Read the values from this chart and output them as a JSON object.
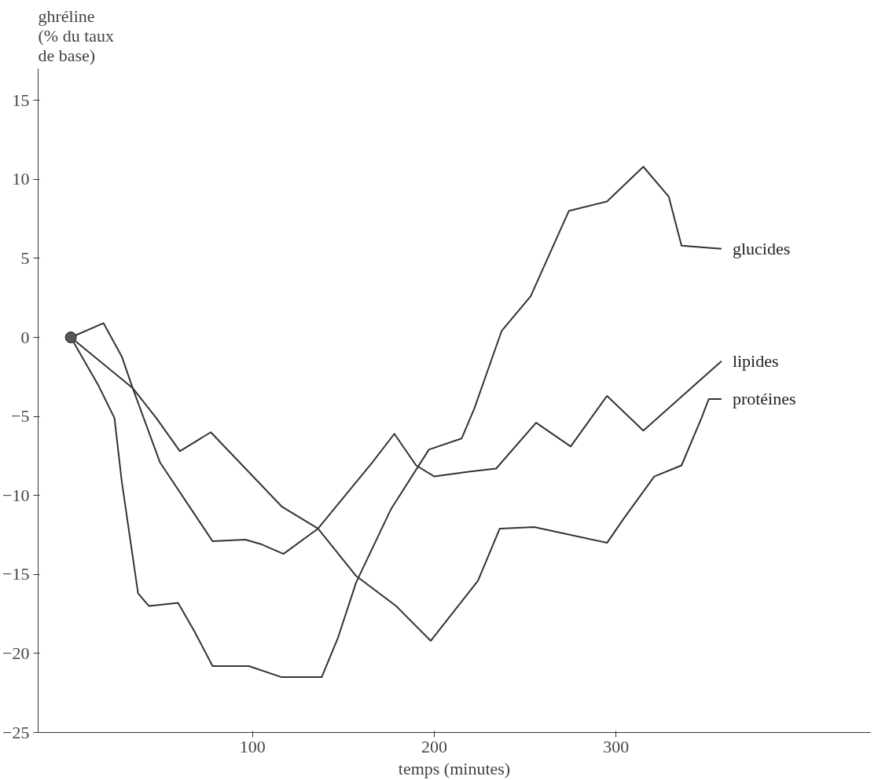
{
  "chart_data": {
    "type": "line",
    "ylabel": "ghréline\n(% du taux\nde base)",
    "xlabel": "temps (minutes)",
    "series": [
      {
        "name": "glucides",
        "color": "#333333",
        "x": [
          0,
          15,
          24,
          28,
          37,
          43,
          59,
          68,
          78,
          98,
          116,
          138,
          147,
          157,
          176,
          197,
          215,
          222,
          237,
          253,
          274,
          295,
          315,
          329,
          336,
          358
        ],
        "values": [
          0,
          -3,
          -5.1,
          -9.1,
          -16.2,
          -17,
          -16.8,
          -18.6,
          -20.8,
          -20.8,
          -21.5,
          -21.5,
          -19,
          -15.5,
          -10.9,
          -7.1,
          -6.4,
          -4.5,
          0.4,
          2.6,
          8,
          8.6,
          10.8,
          8.9,
          5.8,
          5.6
        ]
      },
      {
        "name": "lipides",
        "color": "#333333",
        "x": [
          0,
          18,
          28,
          34,
          49,
          78,
          96,
          105,
          117,
          136,
          166,
          178,
          190,
          200,
          219,
          234,
          256,
          275,
          295,
          315,
          358
        ],
        "values": [
          0,
          0.9,
          -1.2,
          -3.2,
          -7.9,
          -12.9,
          -12.8,
          -13.1,
          -13.7,
          -12.1,
          -7.9,
          -6.1,
          -8.1,
          -8.8,
          -8.5,
          -8.3,
          -5.4,
          -6.9,
          -3.7,
          -5.9,
          -1.5
        ]
      },
      {
        "name": "protéines",
        "color": "#333333",
        "x": [
          0,
          34,
          47,
          60,
          77,
          116,
          136,
          157,
          179,
          198,
          224,
          236,
          255,
          295,
          304,
          321,
          336,
          347,
          351,
          358
        ],
        "values": [
          0,
          -3.2,
          -5.1,
          -7.2,
          -6,
          -10.7,
          -12.1,
          -15.1,
          -17,
          -19.2,
          -15.4,
          -12.1,
          -12,
          -13,
          -11.5,
          -8.8,
          -8.1,
          -5.1,
          -3.9,
          -3.9
        ]
      },
      {
        "type": "scatter",
        "color": "#555555",
        "x": [
          0
        ],
        "values": [
          0
        ]
      }
    ],
    "xlim": [
      -18,
      440
    ],
    "ylim": [
      -25,
      17
    ],
    "xticks": [
      100,
      200,
      300
    ],
    "yticks": [
      -25,
      -20,
      -15,
      -10,
      -5,
      0,
      5,
      10,
      15
    ],
    "grid": false,
    "legend": "right",
    "line_style": "solid"
  }
}
